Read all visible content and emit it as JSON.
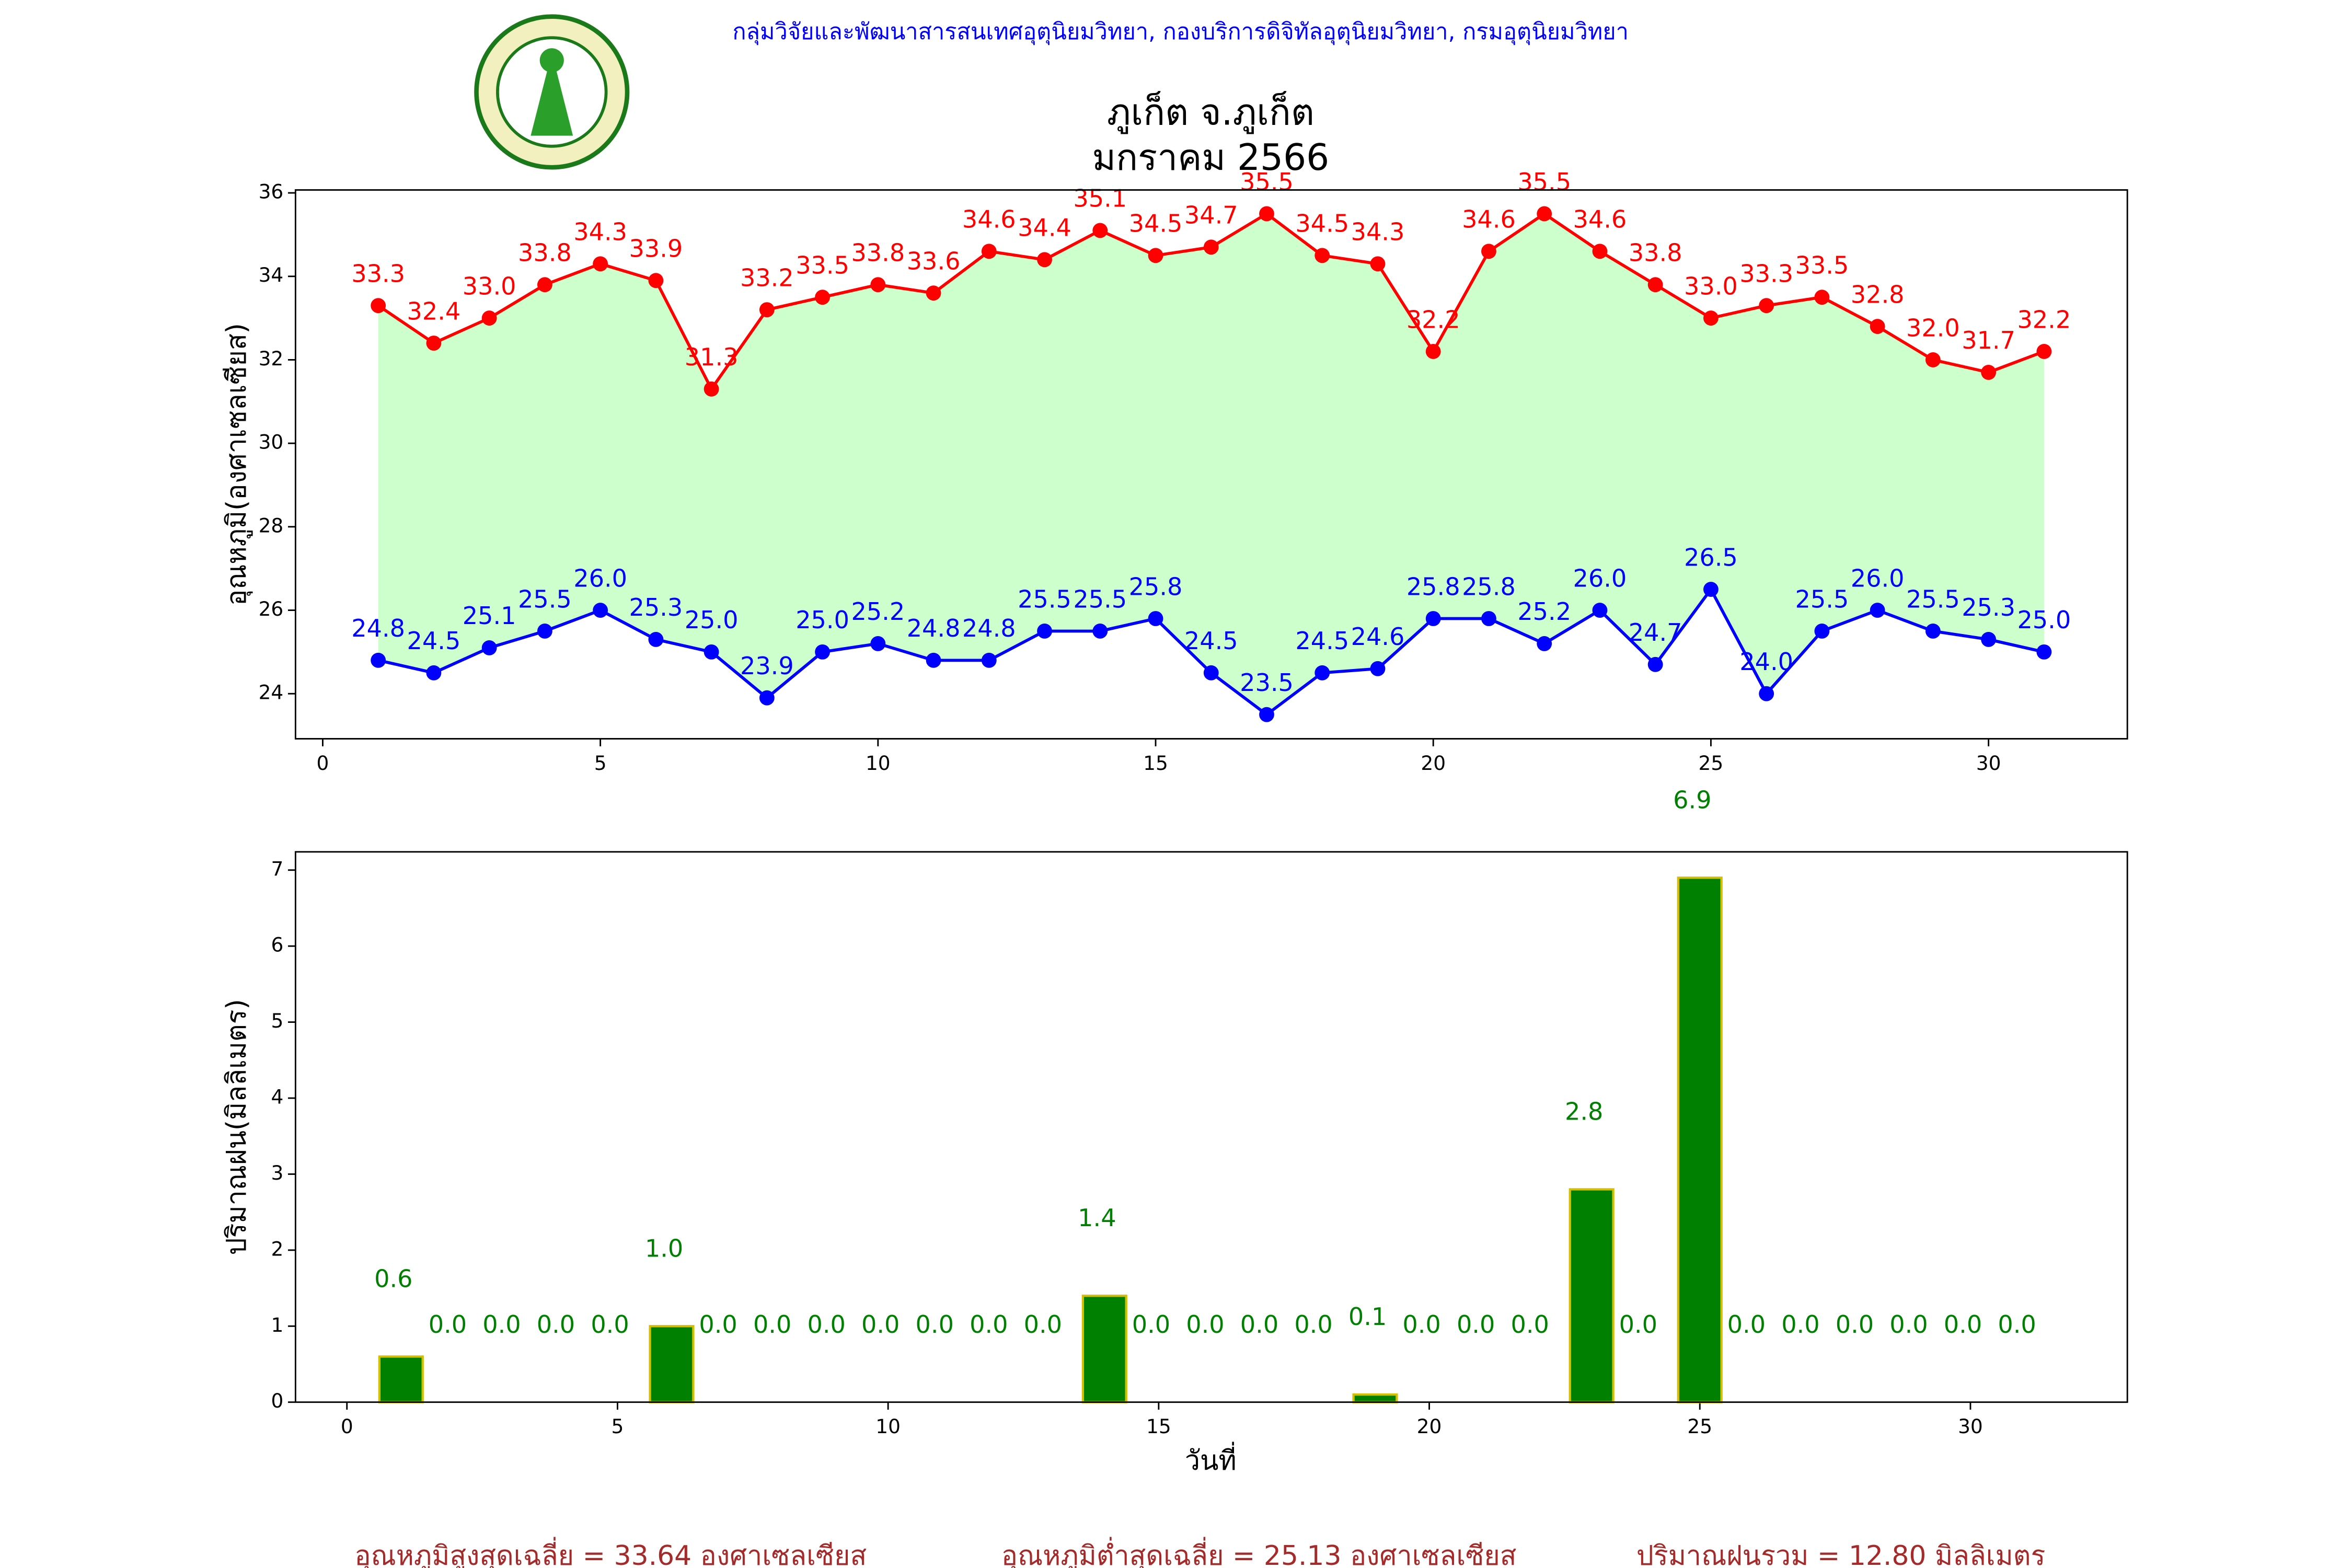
{
  "header": {
    "org": "กลุ่มวิจัยและพัฒนาสารสนเทศอุตุนิยมวิทยา, กองบริการดิจิทัลอุตุนิยมวิทยา, กรมอุตุนิยมวิทยา"
  },
  "chart_data": [
    {
      "type": "line",
      "title": "ภูเก็ต จ.ภูเก็ต",
      "subtitle": "มกราคม 2566",
      "ylabel": "อุณหภูมิ(องศาเซลเซียส)",
      "x": [
        1,
        2,
        3,
        4,
        5,
        6,
        7,
        8,
        9,
        10,
        11,
        12,
        13,
        14,
        15,
        16,
        17,
        18,
        19,
        20,
        21,
        22,
        23,
        24,
        25,
        26,
        27,
        28,
        29,
        30,
        31
      ],
      "series": [
        {
          "color": "#ff0000",
          "values": [
            33.3,
            32.4,
            33.0,
            33.8,
            34.3,
            33.9,
            31.3,
            33.2,
            33.5,
            33.8,
            33.6,
            34.6,
            34.4,
            35.1,
            34.5,
            34.7,
            35.5,
            34.5,
            34.3,
            32.2,
            34.6,
            35.5,
            34.6,
            33.8,
            33.0,
            33.3,
            33.5,
            32.8,
            32.0,
            31.7,
            32.2
          ],
          "value_labels": [
            "33.3",
            "32.4",
            "33.0",
            "33.8",
            "34.3",
            "33.9",
            "31.3",
            "33.2",
            "33.5",
            "33.8",
            "33.6",
            "34.6",
            "34.4",
            "35.1",
            "34.5",
            "34.7",
            "35.5",
            "34.5",
            "34.3",
            "32.2",
            "34.6",
            "35.5",
            "34.6",
            "33.8",
            "33.0",
            "33.3",
            "33.5",
            "32.8",
            "32.0",
            "31.7",
            "32.2"
          ]
        },
        {
          "color": "#0000ff",
          "values": [
            24.8,
            24.5,
            25.1,
            25.5,
            26.0,
            25.3,
            25.0,
            23.9,
            25.0,
            25.2,
            24.8,
            24.8,
            25.5,
            25.5,
            25.8,
            24.5,
            23.5,
            24.5,
            24.6,
            25.8,
            25.8,
            25.2,
            26.0,
            24.7,
            26.5,
            24.0,
            25.5,
            26.0,
            25.5,
            25.3,
            25.0
          ],
          "value_labels": [
            "24.8",
            "24.5",
            "25.1",
            "25.5",
            "26.0",
            "25.3",
            "25.0",
            "23.9",
            "25.0",
            "25.2",
            "24.8",
            "24.8",
            "25.5",
            "25.5",
            "25.8",
            "24.5",
            "23.5",
            "24.5",
            "24.6",
            "25.8",
            "25.8",
            "25.2",
            "26.0",
            "24.7",
            "26.5",
            "24.0",
            "25.5",
            "26.0",
            "25.5",
            "25.3",
            "25.0"
          ]
        }
      ],
      "fill_between_color": "#ccffcc",
      "xlim": [
        -0.49,
        32.5
      ],
      "xticks": [
        0,
        5,
        10,
        15,
        20,
        25,
        30
      ],
      "ylim": [
        22.92,
        36.07
      ],
      "yticks": [
        24,
        26,
        28,
        30,
        32,
        34,
        36
      ]
    },
    {
      "type": "bar",
      "ylabel": "ปริมาณฝน(มิลลิเมตร)",
      "xlabel": "วันที่",
      "x": [
        1,
        2,
        3,
        4,
        5,
        6,
        7,
        8,
        9,
        10,
        11,
        12,
        13,
        14,
        15,
        16,
        17,
        18,
        19,
        20,
        21,
        22,
        23,
        24,
        25,
        26,
        27,
        28,
        29,
        30,
        31
      ],
      "values": [
        0.6,
        0,
        0,
        0,
        0,
        1.0,
        0,
        0,
        0,
        0,
        0,
        0,
        0,
        1.4,
        0,
        0,
        0,
        0,
        0.1,
        0,
        0,
        0,
        2.8,
        0,
        6.9,
        0,
        0,
        0,
        0,
        0,
        0
      ],
      "value_labels": [
        "0.6",
        "0.0",
        "0.0",
        "0.0",
        "0.0",
        "1.0",
        "0.0",
        "0.0",
        "0.0",
        "0.0",
        "0.0",
        "0.0",
        "0.0",
        "1.4",
        "0.0",
        "0.0",
        "0.0",
        "0.0",
        "0.1",
        "0.0",
        "0.0",
        "0.0",
        "2.8",
        "0.0",
        "6.9",
        "0.0",
        "0.0",
        "0.0",
        "0.0",
        "0.0",
        "0.0"
      ],
      "color": "#008000",
      "edgecolor": "#d4c000",
      "label_color": "#008000",
      "xlim": [
        -0.95,
        32.9
      ],
      "xticks": [
        0,
        5,
        10,
        15,
        20,
        25,
        30
      ],
      "ylim": [
        0,
        7.24
      ],
      "yticks": [
        0,
        1,
        2,
        3,
        4,
        5,
        6,
        7
      ]
    }
  ],
  "footer": [
    "อุณหภูมิสูงสุดเฉลี่ย = 33.64 องศาเซลเซียส",
    "อุณหภูมิต่ำสุดเฉลี่ย = 25.13 องศาเซลเซียส",
    "ปริมาณฝนรวม = 12.80 มิลลิเมตร"
  ]
}
